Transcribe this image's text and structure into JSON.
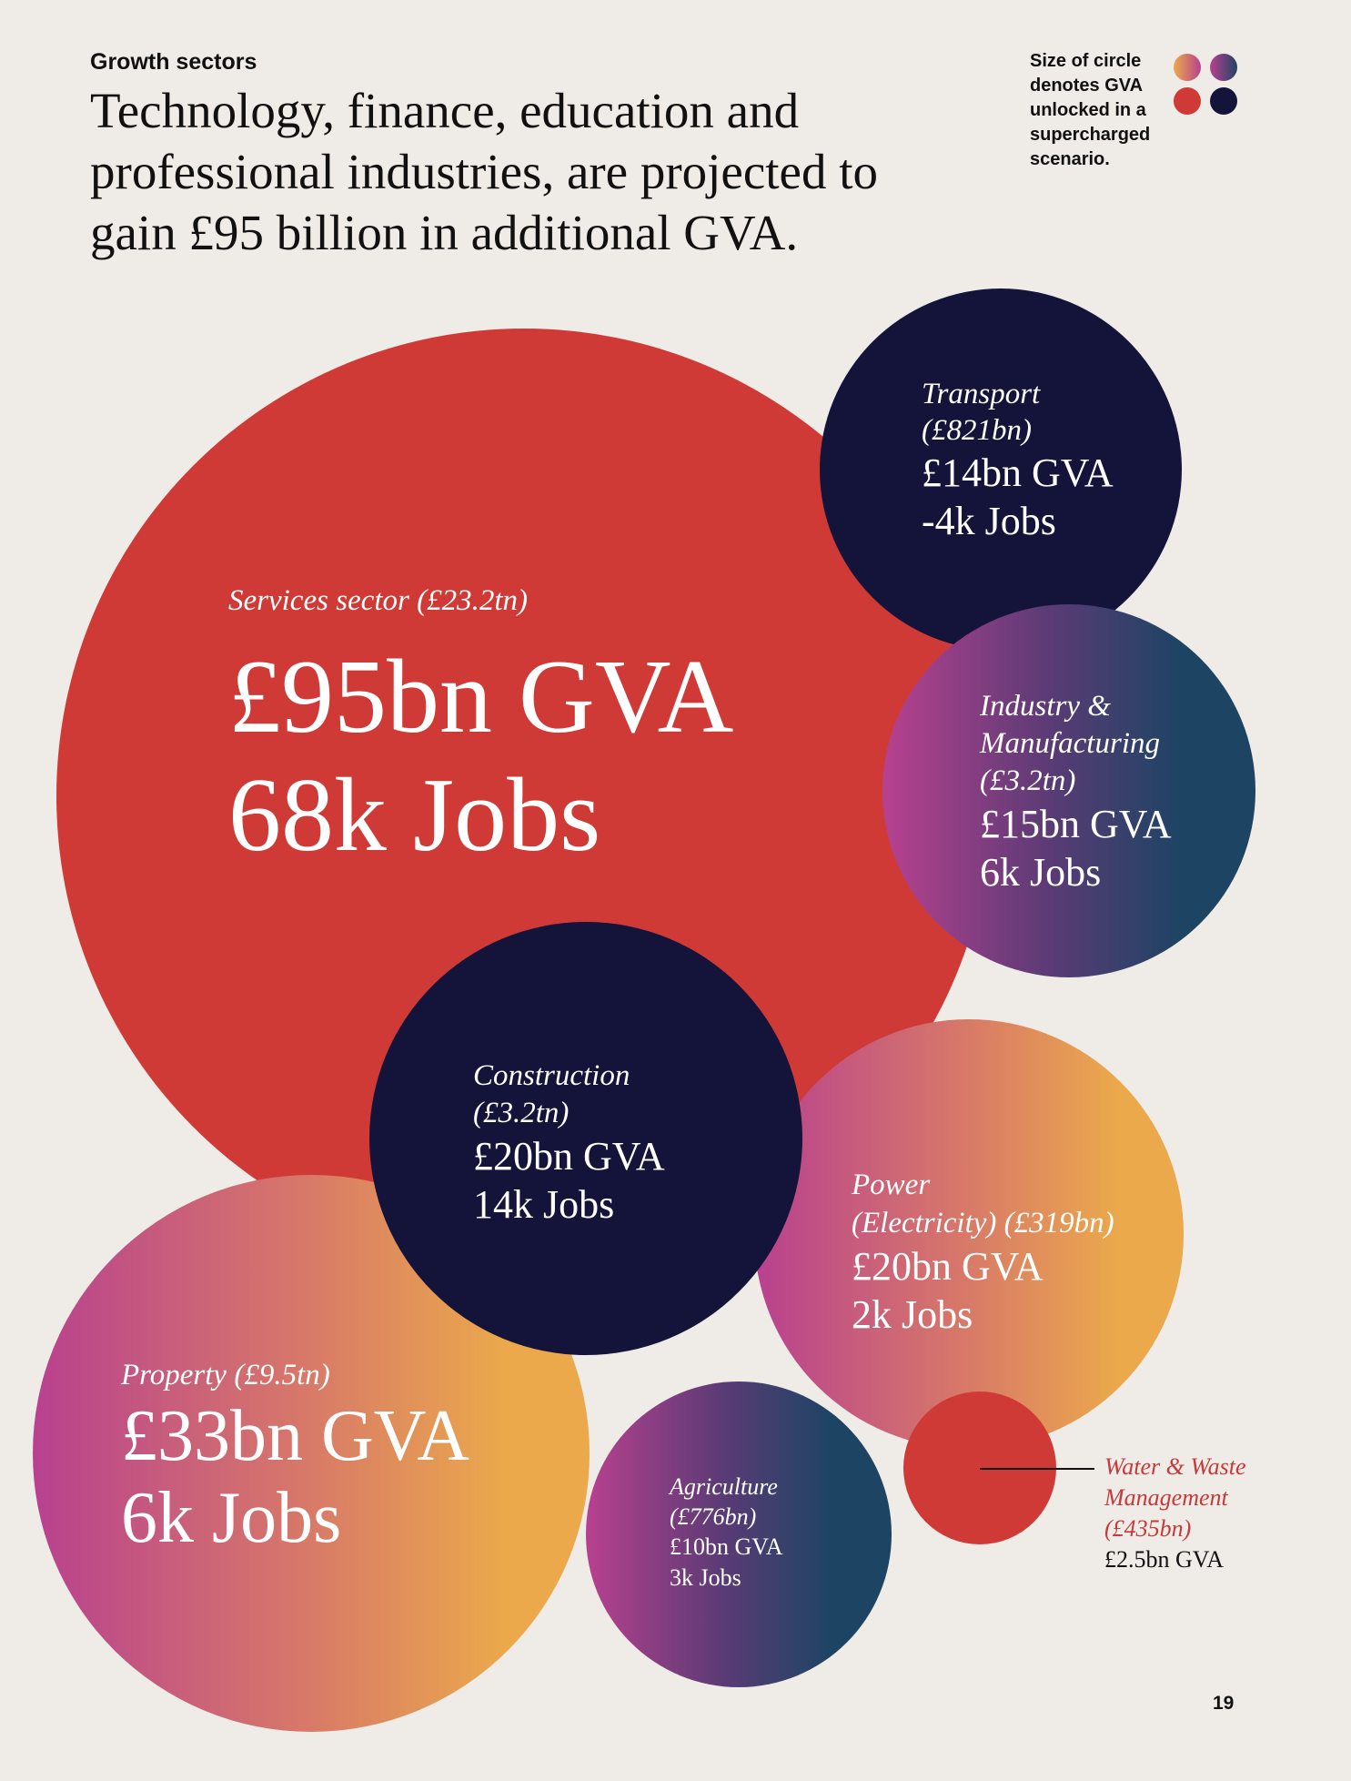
{
  "header": {
    "eyebrow": "Growth sectors",
    "headline": "Technology, finance, education and professional industries, are projected to gain £95 billion in additional GVA."
  },
  "legend": {
    "text": "Size of circle denotes GVA unlocked in a supercharged scenario.",
    "swatches": [
      "orange-magenta-gradient",
      "navy-magenta-gradient",
      "red",
      "navy"
    ]
  },
  "colors": {
    "background": "#efebe7",
    "red": "#d03a36",
    "navy": "#14133a",
    "magenta": "#b8418f",
    "orange": "#eba94b",
    "slate": "#1e4464"
  },
  "chart_data": {
    "type": "bubble",
    "size_encodes": "GVA unlocked in a supercharged scenario",
    "bubbles": [
      {
        "sector": "Services sector (£23.2tn)",
        "gva_bn": 95,
        "jobs_k": 68,
        "gva_text": "£95bn GVA",
        "jobs_text": "68k Jobs",
        "fill": "red"
      },
      {
        "sector": "Transport (£821bn)",
        "gva_bn": 14,
        "jobs_k": -4,
        "gva_text": "£14bn GVA",
        "jobs_text": "-4k Jobs",
        "fill": "navy"
      },
      {
        "sector": "Industry & Manufacturing (£3.2tn)",
        "gva_bn": 15,
        "jobs_k": 6,
        "gva_text": "£15bn GVA",
        "jobs_text": "6k Jobs",
        "fill": "magenta-to-slate"
      },
      {
        "sector": "Construction (£3.2tn)",
        "gva_bn": 20,
        "jobs_k": 14,
        "gva_text": "£20bn GVA",
        "jobs_text": "14k Jobs",
        "fill": "navy"
      },
      {
        "sector": "Power (Electricity) (£319bn)",
        "gva_bn": 20,
        "jobs_k": 2,
        "gva_text": "£20bn GVA",
        "jobs_text": "2k Jobs",
        "fill": "magenta-to-orange"
      },
      {
        "sector": "Property (£9.5tn)",
        "gva_bn": 33,
        "jobs_k": 6,
        "gva_text": "£33bn GVA",
        "jobs_text": "6k Jobs",
        "fill": "magenta-to-orange"
      },
      {
        "sector": "Agriculture (£776bn)",
        "gva_bn": 10,
        "jobs_k": 3,
        "gva_text": "£10bn GVA",
        "jobs_text": "3k Jobs",
        "fill": "magenta-to-slate"
      },
      {
        "sector": "Water & Waste Management (£435bn)",
        "gva_bn": 2.5,
        "jobs_k": null,
        "gva_text": "£2.5bn GVA",
        "jobs_text": "",
        "fill": "red"
      }
    ]
  },
  "labels": {
    "services": {
      "line1": "Services sector (£23.2tn)"
    },
    "transport": {
      "line1": "Transport",
      "line2": "(£821bn)"
    },
    "industry": {
      "line1": "Industry &",
      "line2": "Manufacturing",
      "line3": "(£3.2tn)"
    },
    "construction": {
      "line1": "Construction",
      "line2": "(£3.2tn)"
    },
    "power": {
      "line1": "Power",
      "line2": "(Electricity) (£319bn)"
    },
    "property": {
      "line1": "Property (£9.5tn)"
    },
    "agriculture": {
      "line1": "Agriculture",
      "line2": "(£776bn)"
    },
    "water": {
      "line1": "Water & Waste",
      "line2": "Management",
      "line3": "(£435bn)"
    }
  },
  "page_number": "19"
}
